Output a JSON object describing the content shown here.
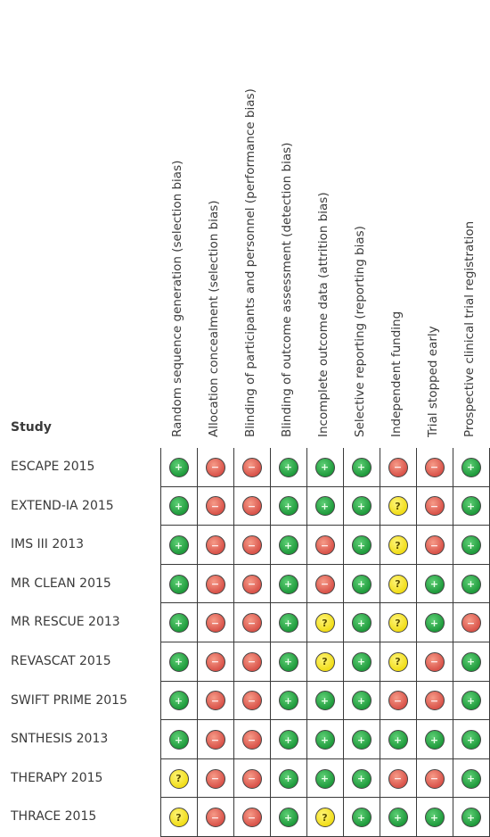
{
  "header": {
    "study_label": "Study"
  },
  "columns": [
    "Random sequence generation (selection bias)",
    "Allocation concealment (selection bias)",
    "Blinding of participants and personnel (performance bias)",
    "Blinding of outcome assessment (detection bias)",
    "Incomplete outcome data (attrition bias)",
    "Selective reporting (reporting bias)",
    "Independent funding",
    "Trial stopped early",
    "Prospective clinical trial registration"
  ],
  "symbols": {
    "low": "+",
    "high": "−",
    "unclear": "?"
  },
  "colors": {
    "low": "#2aa84a",
    "high": "#e2685c",
    "unclear": "#f5e43a",
    "grid": "#3a3a3a"
  },
  "studies": [
    {
      "name": "ESCAPE 2015",
      "judgements": [
        "low",
        "high",
        "high",
        "low",
        "low",
        "low",
        "high",
        "high",
        "low"
      ]
    },
    {
      "name": "EXTEND-IA 2015",
      "judgements": [
        "low",
        "high",
        "high",
        "low",
        "low",
        "low",
        "unclear",
        "high",
        "low"
      ]
    },
    {
      "name": "IMS III 2013",
      "judgements": [
        "low",
        "high",
        "high",
        "low",
        "high",
        "low",
        "unclear",
        "high",
        "low"
      ]
    },
    {
      "name": "MR CLEAN 2015",
      "judgements": [
        "low",
        "high",
        "high",
        "low",
        "high",
        "low",
        "unclear",
        "low",
        "low"
      ]
    },
    {
      "name": "MR RESCUE 2013",
      "judgements": [
        "low",
        "high",
        "high",
        "low",
        "unclear",
        "low",
        "unclear",
        "low",
        "high"
      ]
    },
    {
      "name": "REVASCAT 2015",
      "judgements": [
        "low",
        "high",
        "high",
        "low",
        "unclear",
        "low",
        "unclear",
        "high",
        "low"
      ]
    },
    {
      "name": "SWIFT PRIME 2015",
      "judgements": [
        "low",
        "high",
        "high",
        "low",
        "low",
        "low",
        "high",
        "high",
        "low"
      ]
    },
    {
      "name": "SNTHESIS 2013",
      "judgements": [
        "low",
        "high",
        "high",
        "low",
        "low",
        "low",
        "low",
        "low",
        "low"
      ]
    },
    {
      "name": "THERAPY 2015",
      "judgements": [
        "unclear",
        "high",
        "high",
        "low",
        "low",
        "low",
        "high",
        "high",
        "low"
      ]
    },
    {
      "name": "THRACE 2015",
      "judgements": [
        "unclear",
        "high",
        "high",
        "low",
        "unclear",
        "low",
        "low",
        "low",
        "low"
      ]
    }
  ]
}
